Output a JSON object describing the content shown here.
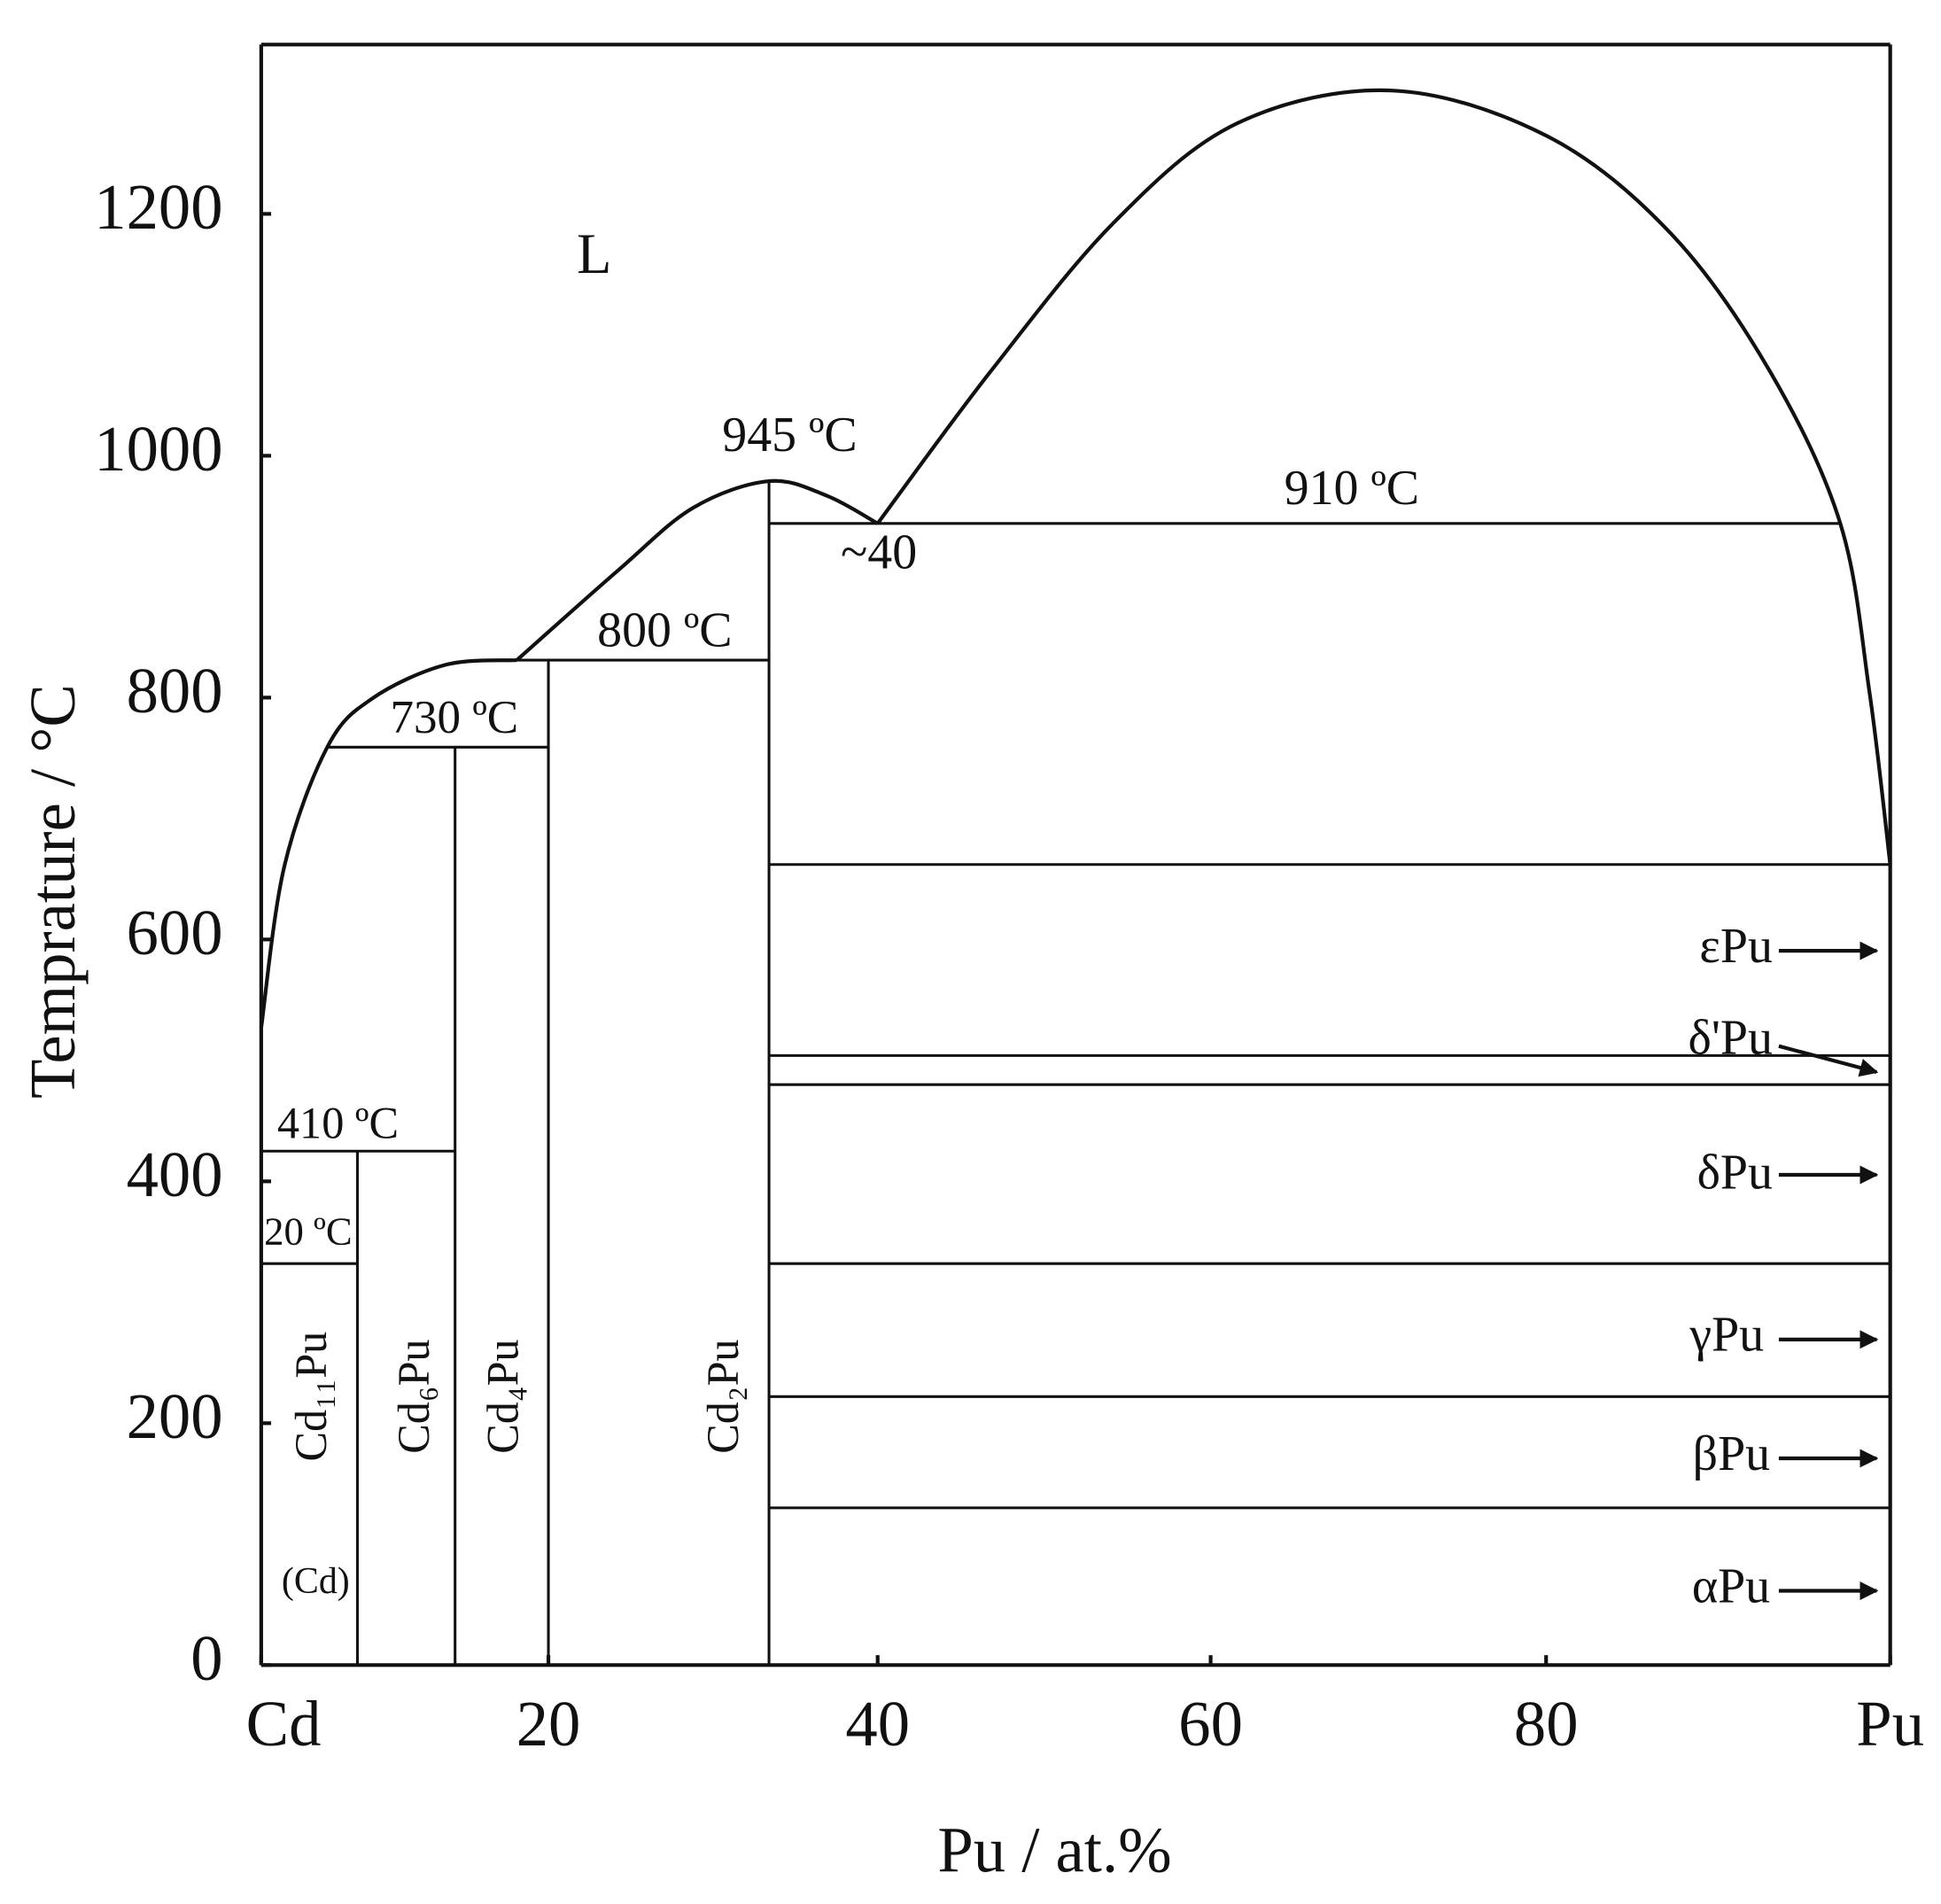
{
  "chart_data": {
    "type": "phase-diagram",
    "x_label": "Pu / at.%",
    "y_label": "Temprature / °C",
    "xlim": [
      0,
      100
    ],
    "ylim": [
      0,
      1340
    ],
    "xticks": [
      {
        "value": 0,
        "label": "Cd"
      },
      20,
      40,
      60,
      80,
      {
        "value": 100,
        "label": "Pu"
      }
    ],
    "yticks": [
      0,
      200,
      400,
      600,
      800,
      1000,
      1200
    ],
    "grid": false,
    "color": "#111111",
    "lines": [
      {
        "x": [
          33.4,
          97.1
        ],
        "y": [
          944,
          944
        ]
      },
      {
        "x": [
          17.8,
          33.4
        ],
        "y": [
          831,
          831
        ]
      },
      {
        "x": [
          4.6,
          20
        ],
        "y": [
          759,
          759
        ]
      },
      {
        "x": [
          0,
          13.5
        ],
        "y": [
          425,
          425
        ]
      },
      {
        "x": [
          0,
          6.7
        ],
        "y": [
          332,
          332
        ]
      },
      {
        "x": [
          33.4,
          100
        ],
        "y": [
          662,
          662
        ]
      },
      {
        "x": [
          33.4,
          100
        ],
        "y": [
          504,
          504
        ]
      },
      {
        "x": [
          33.4,
          100
        ],
        "y": [
          480,
          480
        ]
      },
      {
        "x": [
          33.4,
          100
        ],
        "y": [
          332,
          332
        ]
      },
      {
        "x": [
          33.4,
          100
        ],
        "y": [
          222,
          222
        ]
      },
      {
        "x": [
          33.4,
          100
        ],
        "y": [
          130,
          130
        ]
      },
      {
        "x": [
          6.7,
          6.7
        ],
        "y": [
          0,
          425
        ]
      },
      {
        "x": [
          13.5,
          13.5
        ],
        "y": [
          0,
          759
        ]
      },
      {
        "x": [
          20,
          20
        ],
        "y": [
          0,
          831
        ]
      },
      {
        "x": [
          33.4,
          33.4
        ],
        "y": [
          0,
          979
        ]
      }
    ],
    "curves": [
      {
        "x": [
          0,
          1.6,
          4.6,
          7.7,
          12.8,
          17.8
        ],
        "y": [
          527,
          660,
          759,
          799,
          827,
          831
        ]
      },
      {
        "x": [
          17.8,
          24.3,
          28.8,
          33.4,
          36.9,
          40
        ],
        "y": [
          831,
          906,
          957,
          979,
          967,
          944
        ]
      },
      {
        "x": [
          40,
          46.8,
          54.2,
          61.6,
          70.8,
          80.1,
          87.3,
          93.0,
          97.1,
          98.8,
          100
        ],
        "y": [
          944,
          1070,
          1193,
          1275,
          1302,
          1264,
          1183,
          1070,
          944,
          804,
          662
        ]
      }
    ],
    "labels": [
      "L",
      "945 ºC",
      "910 ºC",
      "~40",
      "800 ºC",
      "730 ºC",
      "410 ºC",
      "20 ºC",
      "Cd₁₁Pu",
      "Cd₆Pu",
      "Cd₄Pu",
      "Cd₂Pu",
      "(Cd)",
      "εPu",
      "δ'Pu",
      "δPu",
      "γPu",
      "βPu",
      "αPu"
    ]
  }
}
